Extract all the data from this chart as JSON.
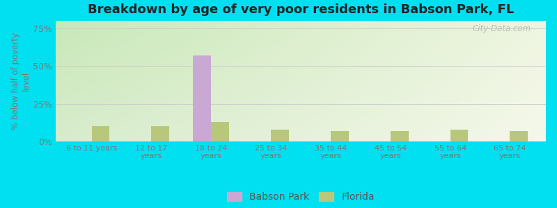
{
  "title": "Breakdown by age of very poor residents in Babson Park, FL",
  "categories": [
    "6 to 11 years",
    "12 to 17\nyears",
    "18 to 24\nyears",
    "25 to 34\nyears",
    "35 to 44\nyears",
    "45 to 54\nyears",
    "55 to 64\nyears",
    "65 to 74\nyears"
  ],
  "babson_park": [
    0,
    0,
    57,
    0,
    0,
    0,
    0,
    0
  ],
  "florida": [
    10,
    10,
    13,
    8,
    7,
    7,
    8,
    7
  ],
  "babson_color": "#c9a8d4",
  "florida_color": "#b8c87a",
  "ylabel": "% below half of poverty\nlevel",
  "ylim": [
    0,
    80
  ],
  "yticks": [
    0,
    25,
    50,
    75
  ],
  "yticklabels": [
    "0%",
    "25%",
    "50%",
    "75%"
  ],
  "bg_outer": "#00e0f0",
  "watermark": "City-Data.com",
  "bar_width": 0.3,
  "grid_color": "#cccccc",
  "bg_grad_topleft": "#c8e8b8",
  "bg_grad_topright": "#e8f0e0",
  "bg_grad_bottomleft": "#d8edcc",
  "bg_grad_bottomright": "#f5f5ea"
}
